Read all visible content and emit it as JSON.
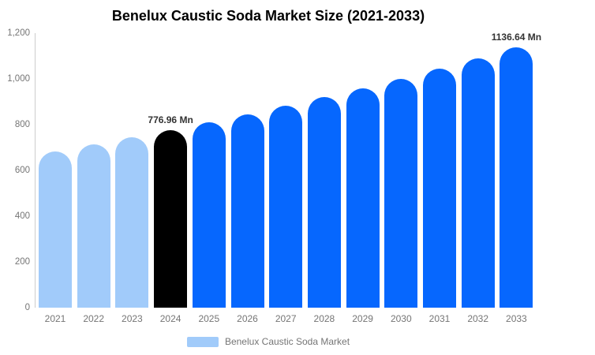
{
  "chart_data": {
    "type": "bar",
    "title": "Benelux Caustic Soda Market Size (2021-2033)",
    "categories": [
      "2021",
      "2022",
      "2023",
      "2024",
      "2025",
      "2026",
      "2027",
      "2028",
      "2029",
      "2030",
      "2031",
      "2032",
      "2033"
    ],
    "series": [
      {
        "name": "Benelux Caustic Soda Market",
        "values": [
          684,
          713,
          744,
          776.96,
          810,
          845,
          882,
          920,
          960,
          1001,
          1044,
          1089,
          1136.64
        ]
      }
    ],
    "unit": "Mn",
    "ylim": [
      0,
      1200
    ],
    "yticks": [
      {
        "value": 0,
        "label": "0"
      },
      {
        "value": 200,
        "label": "200"
      },
      {
        "value": 400,
        "label": "400"
      },
      {
        "value": 600,
        "label": "600"
      },
      {
        "value": 800,
        "label": "800"
      },
      {
        "value": 1000,
        "label": "1,000"
      },
      {
        "value": 1200,
        "label": "1,200"
      }
    ],
    "grid": false,
    "legend_position": "bottom",
    "bar_segments": [
      "historical",
      "historical",
      "historical",
      "current",
      "forecast",
      "forecast",
      "forecast",
      "forecast",
      "forecast",
      "forecast",
      "forecast",
      "forecast",
      "forecast"
    ],
    "colors": {
      "historical": "#A1CBFA",
      "current": "#000000",
      "forecast": "#0667FE"
    },
    "labeled_points": [
      {
        "category": "2024",
        "label": "776.96 Mn"
      },
      {
        "category": "2033",
        "label": "1136.64 Mn"
      }
    ],
    "axis_label_color": "#757575",
    "axis_line_color": "#cccccc"
  }
}
